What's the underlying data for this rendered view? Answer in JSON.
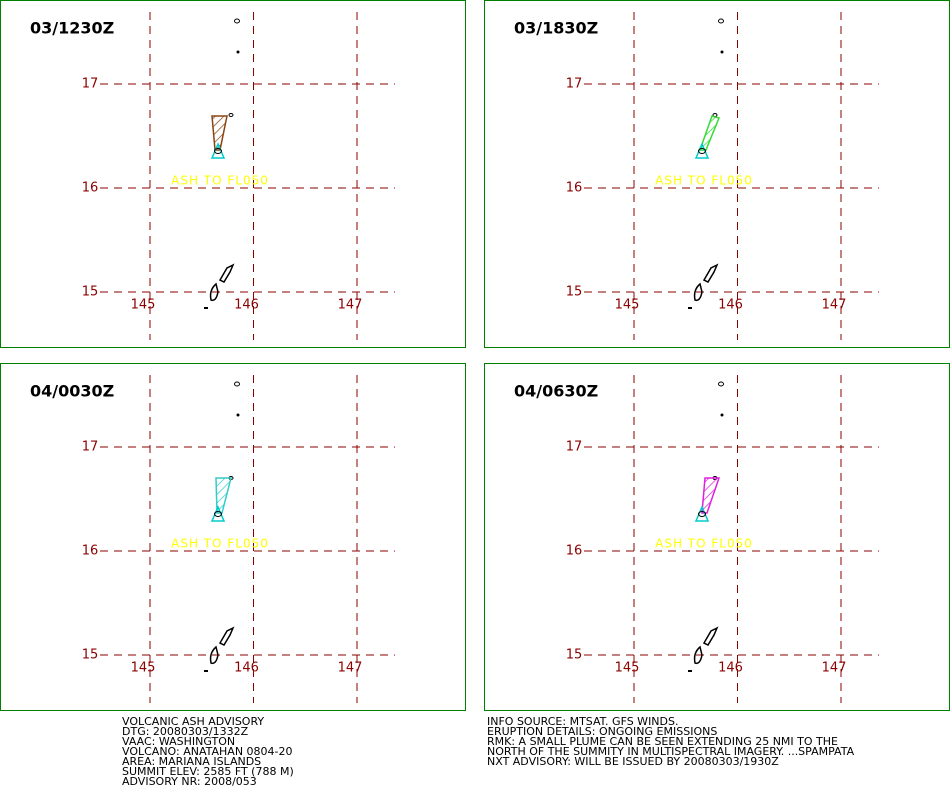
{
  "latitudes": [
    17,
    16,
    15
  ],
  "longitudes": [
    145,
    146,
    147
  ],
  "panels": [
    {
      "time": "03/1230Z",
      "label": "ASH TO FL050",
      "plume_color": "#8b4513"
    },
    {
      "time": "03/1830Z",
      "label": "ASH TO FL050",
      "plume_color": "#33dd33"
    },
    {
      "time": "04/0030Z",
      "label": "ASH TO FL050",
      "plume_color": "#33cccc"
    },
    {
      "time": "04/0630Z",
      "label": "ASH TO FL050",
      "plume_color": "#dd22dd"
    }
  ],
  "advisory_left": [
    "VOLCANIC ASH ADVISORY",
    "DTG: 20080303/1332Z",
    "VAAC: WASHINGTON",
    "VOLCANO: ANATAHAN 0804-20",
    "AREA: MARIANA ISLANDS",
    "SUMMIT ELEV: 2585 FT (788 M)",
    "ADVISORY NR: 2008/053"
  ],
  "advisory_right": [
    "INFO SOURCE: MTSAT. GFS WINDS.",
    "ERUPTION DETAILS: ONGOING EMISSIONS",
    "RMK: A SMALL PLUME CAN BE SEEN EXTENDING 25 NMI TO THE",
    "NORTH OF THE SUMMITY IN MULTISPECTRAL IMAGERY. ...SPAMPATA",
    "NXT ADVISORY: WILL BE ISSUED BY 20080303/1930Z"
  ]
}
